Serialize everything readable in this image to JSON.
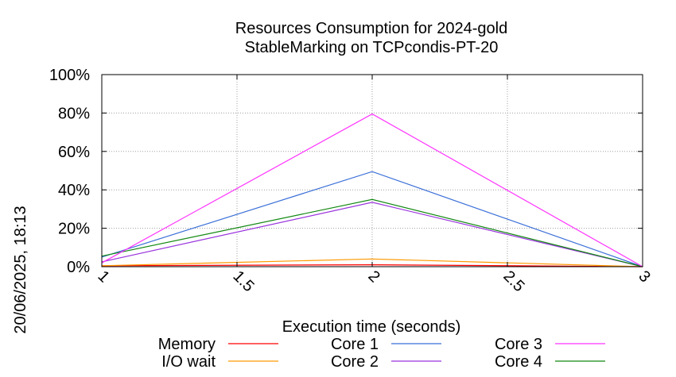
{
  "timestamp": "20/06/2025, 18:13",
  "chart_data": {
    "type": "line",
    "title": [
      "Resources Consumption for 2024-gold",
      "StableMarking on TCPcondis-PT-20"
    ],
    "xlabel": "Execution time (seconds)",
    "ylabel": "",
    "x": [
      1,
      2,
      3
    ],
    "xlim": [
      1,
      3
    ],
    "ylim": [
      0,
      100
    ],
    "xticks": [
      1,
      1.5,
      2,
      2.5,
      3
    ],
    "xtick_labels": [
      "1",
      "1.5",
      "2",
      "2.5",
      "3"
    ],
    "yticks": [
      0,
      20,
      40,
      60,
      80,
      100
    ],
    "ytick_labels": [
      "0%",
      "20%",
      "40%",
      "60%",
      "80%",
      "100%"
    ],
    "grid": true,
    "legend_position": "bottom",
    "series": [
      {
        "name": "Memory",
        "color": "#ff0000",
        "values": [
          0.5,
          1.0,
          0.0
        ]
      },
      {
        "name": "Core 1",
        "color": "#3a6fd8",
        "values": [
          5,
          49.5,
          0
        ]
      },
      {
        "name": "Core 3",
        "color": "#ff33ff",
        "values": [
          2,
          79.5,
          0
        ]
      },
      {
        "name": "I/O wait",
        "color": "#ff9900",
        "values": [
          0.5,
          4,
          0
        ]
      },
      {
        "name": "Core 2",
        "color": "#9933dd",
        "values": [
          2.5,
          33.5,
          0
        ]
      },
      {
        "name": "Core 4",
        "color": "#118811",
        "values": [
          5.5,
          35,
          0
        ]
      }
    ]
  }
}
